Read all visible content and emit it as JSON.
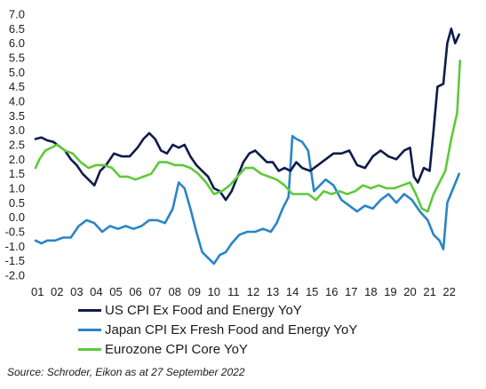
{
  "chart_data": {
    "type": "line",
    "title": "",
    "xlabel": "",
    "ylabel": "",
    "x_ticks": [
      "01",
      "02",
      "03",
      "04",
      "05",
      "06",
      "07",
      "08",
      "09",
      "10",
      "11",
      "12",
      "13",
      "14",
      "15",
      "16",
      "17",
      "18",
      "19",
      "20",
      "21",
      "22"
    ],
    "y_ticks": [
      "7.0",
      "6.5",
      "6.0",
      "5.5",
      "5.0",
      "4.5",
      "4.0",
      "3.5",
      "3.0",
      "2.5",
      "2.0",
      "1.5",
      "1.0",
      "0.5",
      "0.0",
      "-0.5",
      "-1.0",
      "-1.5",
      "-2.0"
    ],
    "xlim": [
      2001,
      2022.75
    ],
    "ylim": [
      -2.0,
      7.0
    ],
    "grid": false,
    "legend_position": "bottom",
    "series": [
      {
        "name": "US CPI Ex Food and Energy YoY",
        "color": "#0d1c4a",
        "x": [
          2001.0,
          2001.3,
          2001.6,
          2001.9,
          2002.2,
          2002.5,
          2002.8,
          2003.1,
          2003.4,
          2003.7,
          2004.0,
          2004.3,
          2004.6,
          2005.0,
          2005.4,
          2005.8,
          2006.2,
          2006.5,
          2006.8,
          2007.1,
          2007.4,
          2007.7,
          2008.0,
          2008.3,
          2008.6,
          2008.9,
          2009.2,
          2009.5,
          2009.8,
          2010.1,
          2010.4,
          2010.7,
          2011.0,
          2011.3,
          2011.6,
          2011.9,
          2012.2,
          2012.5,
          2012.8,
          2013.1,
          2013.4,
          2013.7,
          2014.0,
          2014.3,
          2014.6,
          2015.0,
          2015.4,
          2015.8,
          2016.2,
          2016.6,
          2017.0,
          2017.4,
          2017.8,
          2018.2,
          2018.6,
          2019.0,
          2019.4,
          2019.8,
          2020.1,
          2020.3,
          2020.5,
          2020.8,
          2021.1,
          2021.3,
          2021.5,
          2021.8,
          2022.0,
          2022.2,
          2022.4,
          2022.6
        ],
        "y": [
          2.7,
          2.75,
          2.65,
          2.6,
          2.45,
          2.3,
          2.0,
          1.8,
          1.5,
          1.3,
          1.1,
          1.6,
          1.8,
          2.2,
          2.1,
          2.1,
          2.4,
          2.7,
          2.9,
          2.7,
          2.3,
          2.2,
          2.5,
          2.4,
          2.5,
          2.1,
          1.8,
          1.6,
          1.4,
          1.0,
          0.9,
          0.6,
          0.9,
          1.4,
          1.9,
          2.2,
          2.3,
          2.1,
          1.9,
          1.9,
          1.6,
          1.7,
          1.6,
          1.9,
          1.7,
          1.6,
          1.8,
          2.0,
          2.2,
          2.2,
          2.3,
          1.8,
          1.7,
          2.1,
          2.3,
          2.1,
          2.0,
          2.3,
          2.4,
          1.4,
          1.2,
          1.7,
          1.6,
          3.0,
          4.5,
          4.6,
          6.0,
          6.5,
          6.0,
          6.3
        ]
      },
      {
        "name": "Japan CPI Ex Fresh Food and Energy YoY",
        "color": "#2a84c6",
        "x": [
          2001.0,
          2001.3,
          2001.6,
          2002.0,
          2002.4,
          2002.8,
          2003.2,
          2003.6,
          2004.0,
          2004.4,
          2004.8,
          2005.2,
          2005.6,
          2006.0,
          2006.4,
          2006.8,
          2007.2,
          2007.6,
          2008.0,
          2008.3,
          2008.6,
          2008.9,
          2009.2,
          2009.5,
          2009.8,
          2010.1,
          2010.4,
          2010.7,
          2011.0,
          2011.4,
          2011.8,
          2012.2,
          2012.6,
          2013.0,
          2013.3,
          2013.6,
          2013.9,
          2014.1,
          2014.3,
          2014.6,
          2014.9,
          2015.2,
          2015.5,
          2015.8,
          2016.2,
          2016.6,
          2017.0,
          2017.4,
          2017.8,
          2018.2,
          2018.6,
          2019.0,
          2019.4,
          2019.8,
          2020.2,
          2020.6,
          2021.0,
          2021.3,
          2021.6,
          2021.8,
          2022.0,
          2022.3,
          2022.6
        ],
        "y": [
          -0.8,
          -0.9,
          -0.8,
          -0.8,
          -0.7,
          -0.7,
          -0.3,
          -0.1,
          -0.2,
          -0.5,
          -0.3,
          -0.4,
          -0.3,
          -0.4,
          -0.3,
          -0.1,
          -0.1,
          -0.2,
          0.3,
          1.2,
          1.0,
          0.3,
          -0.5,
          -1.2,
          -1.4,
          -1.6,
          -1.3,
          -1.2,
          -0.9,
          -0.6,
          -0.5,
          -0.5,
          -0.4,
          -0.5,
          -0.2,
          0.3,
          0.7,
          2.8,
          2.7,
          2.6,
          2.3,
          0.9,
          1.1,
          1.3,
          1.1,
          0.6,
          0.4,
          0.2,
          0.4,
          0.3,
          0.6,
          0.8,
          0.5,
          0.8,
          0.6,
          0.2,
          -0.1,
          -0.6,
          -0.8,
          -1.1,
          0.5,
          1.0,
          1.5
        ]
      },
      {
        "name": "Eurozone CPI Core YoY",
        "color": "#5fc93a",
        "x": [
          2001.0,
          2001.2,
          2001.5,
          2001.8,
          2002.1,
          2002.5,
          2002.9,
          2003.3,
          2003.7,
          2004.1,
          2004.5,
          2004.9,
          2005.3,
          2005.7,
          2006.1,
          2006.5,
          2006.9,
          2007.3,
          2007.7,
          2008.1,
          2008.5,
          2008.9,
          2009.3,
          2009.7,
          2010.1,
          2010.5,
          2010.9,
          2011.3,
          2011.7,
          2012.1,
          2012.5,
          2012.9,
          2013.3,
          2013.7,
          2014.1,
          2014.5,
          2014.9,
          2015.3,
          2015.7,
          2016.1,
          2016.5,
          2016.9,
          2017.3,
          2017.7,
          2018.1,
          2018.5,
          2018.9,
          2019.3,
          2019.7,
          2020.1,
          2020.4,
          2020.7,
          2021.0,
          2021.3,
          2021.6,
          2021.9,
          2022.2,
          2022.5,
          2022.65
        ],
        "y": [
          1.7,
          2.0,
          2.3,
          2.4,
          2.5,
          2.3,
          2.2,
          1.9,
          1.7,
          1.8,
          1.8,
          1.7,
          1.4,
          1.4,
          1.3,
          1.4,
          1.5,
          1.9,
          1.9,
          1.8,
          1.8,
          1.7,
          1.5,
          1.2,
          0.8,
          0.9,
          1.1,
          1.4,
          1.7,
          1.7,
          1.5,
          1.4,
          1.3,
          1.1,
          0.8,
          0.8,
          0.8,
          0.6,
          0.9,
          0.8,
          0.9,
          0.8,
          0.9,
          1.1,
          1.0,
          1.1,
          1.0,
          1.0,
          1.1,
          1.2,
          0.8,
          0.3,
          0.2,
          0.8,
          1.2,
          1.6,
          2.7,
          3.6,
          5.4
        ]
      }
    ],
    "source": "Source: Schroder, Eikon as at 27 September 2022"
  }
}
